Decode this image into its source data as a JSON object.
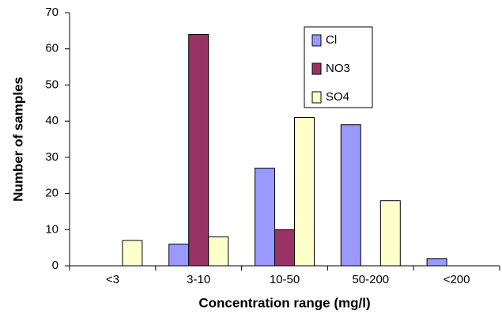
{
  "chart_data": {
    "type": "bar",
    "x_label": "Concentration range (mg/l)",
    "y_label": "Number of samples",
    "categories": [
      "<3",
      "3-10",
      "10-50",
      "50-200",
      "<200"
    ],
    "series": [
      {
        "name": "Cl",
        "color": "#9999ff",
        "values": [
          0,
          6,
          27,
          39,
          2
        ]
      },
      {
        "name": "NO3",
        "color": "#993366",
        "values": [
          0,
          64,
          10,
          0,
          0
        ]
      },
      {
        "name": "SO4",
        "color": "#ffffcc",
        "values": [
          7,
          8,
          41,
          18,
          0
        ]
      }
    ],
    "ylim": [
      0,
      70
    ],
    "yticks": [
      0,
      10,
      20,
      30,
      40,
      50,
      60,
      70
    ],
    "grid": false,
    "legend": "top-right"
  }
}
